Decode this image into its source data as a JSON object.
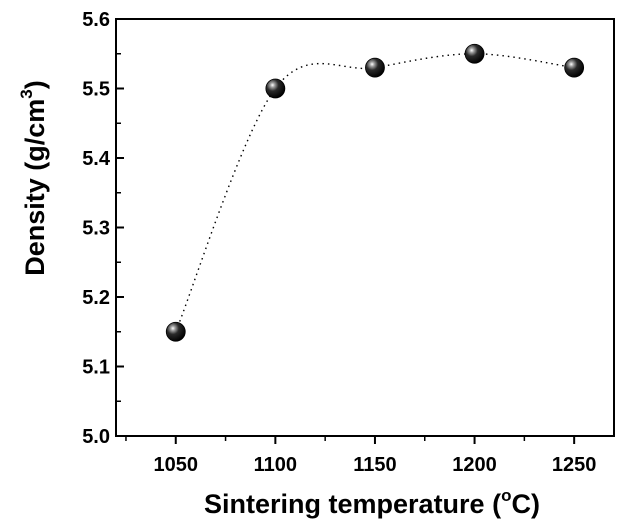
{
  "chart_data": {
    "type": "scatter",
    "title": "",
    "xlabel": "Sintering temperature (",
    "xlabel_sup": "o",
    "xlabel_tail": "C)",
    "ylabel": "Density (g/cm",
    "ylabel_sup": "3",
    "ylabel_tail": ")",
    "xlim": [
      1020,
      1270
    ],
    "ylim": [
      5.0,
      5.6
    ],
    "x_ticks": [
      1050,
      1100,
      1150,
      1200,
      1250
    ],
    "x_tick_labels": [
      "1050",
      "1100",
      "1150",
      "1200",
      "1250"
    ],
    "y_ticks": [
      5.0,
      5.1,
      5.2,
      5.3,
      5.4,
      5.5,
      5.6
    ],
    "y_tick_labels": [
      "5.0",
      "5.1",
      "5.2",
      "5.3",
      "5.4",
      "5.5",
      "5.6"
    ],
    "grid": false,
    "legend": "none",
    "series": [
      {
        "x": [
          1050,
          1100,
          1150,
          1200,
          1250
        ],
        "y": [
          5.15,
          5.5,
          5.53,
          5.55,
          5.53
        ],
        "marker_color": "#000000",
        "trend_line": "dotted"
      }
    ]
  }
}
